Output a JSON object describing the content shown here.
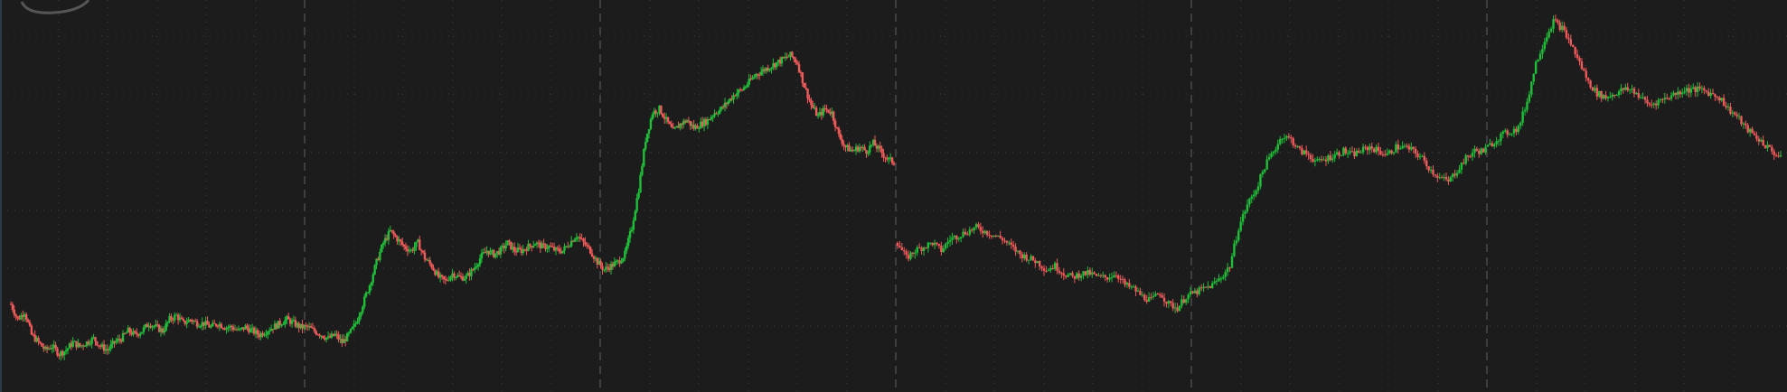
{
  "colors": {
    "background": "#1c1c1c",
    "grid_dotted": "#3a3a3a",
    "session_divider": "#4a4a4a",
    "up": "#1fbf3a",
    "down": "#f05a5a",
    "left_border": "#2b3a4a",
    "logo": "#555555"
  },
  "chart_data": {
    "type": "candlestick",
    "sessions": 6,
    "grid": true,
    "y_gridlines": 6,
    "x_gridlines_per_session": 6,
    "ylim": [
      0,
      100
    ],
    "closes": [
      [
        22,
        18,
        20,
        14,
        12,
        10,
        11,
        9,
        10,
        12,
        11,
        12,
        13,
        11,
        10,
        12,
        13,
        15,
        14,
        15,
        17,
        16,
        15,
        18,
        19,
        17,
        18,
        17,
        17,
        16,
        17,
        16,
        16,
        15,
        16,
        15,
        14,
        15,
        16,
        17,
        18,
        17,
        16,
        16,
        15,
        14,
        13,
        14,
        12,
        14,
        17,
        22,
        27,
        33,
        38,
        41,
        39,
        37,
        36,
        38,
        34,
        32,
        29,
        28,
        30,
        29,
        29,
        31,
        34,
        36,
        35,
        36,
        38,
        36,
        36,
        37,
        38,
        37,
        37,
        36,
        36,
        38,
        40,
        38,
        36,
        33,
        31,
        32,
        33,
        35,
        42,
        52,
        65,
        72,
        73,
        70,
        67,
        69,
        70,
        68,
        69,
        70,
        72,
        73,
        75,
        77,
        78,
        80,
        82,
        83,
        84,
        85,
        86,
        87,
        85,
        79,
        74,
        71,
        73,
        72,
        66,
        63,
        62,
        63,
        62,
        64,
        62,
        60,
        59
      ],
      [
        38,
        34,
        36,
        37,
        38,
        36,
        39,
        40,
        41,
        42,
        41,
        40,
        39,
        37,
        35,
        34,
        33,
        31,
        32,
        30,
        29,
        30,
        30,
        29,
        29,
        30,
        27,
        26,
        24,
        23,
        25,
        22,
        21,
        24,
        25,
        26,
        27,
        29,
        32,
        42,
        48,
        52,
        58,
        62,
        66,
        65,
        62,
        61,
        59,
        60,
        61,
        62,
        61,
        62,
        63,
        62,
        61,
        63,
        63,
        62,
        60,
        57,
        55,
        54,
        57,
        60,
        62,
        62,
        64,
        66,
        67,
        68,
        75,
        85,
        91,
        96,
        94,
        90,
        85,
        80,
        77,
        76,
        77,
        78,
        78,
        76,
        74,
        75,
        76,
        77,
        78,
        78,
        78,
        77,
        76,
        73,
        71,
        68,
        66,
        64,
        62,
        60
      ]
    ]
  }
}
